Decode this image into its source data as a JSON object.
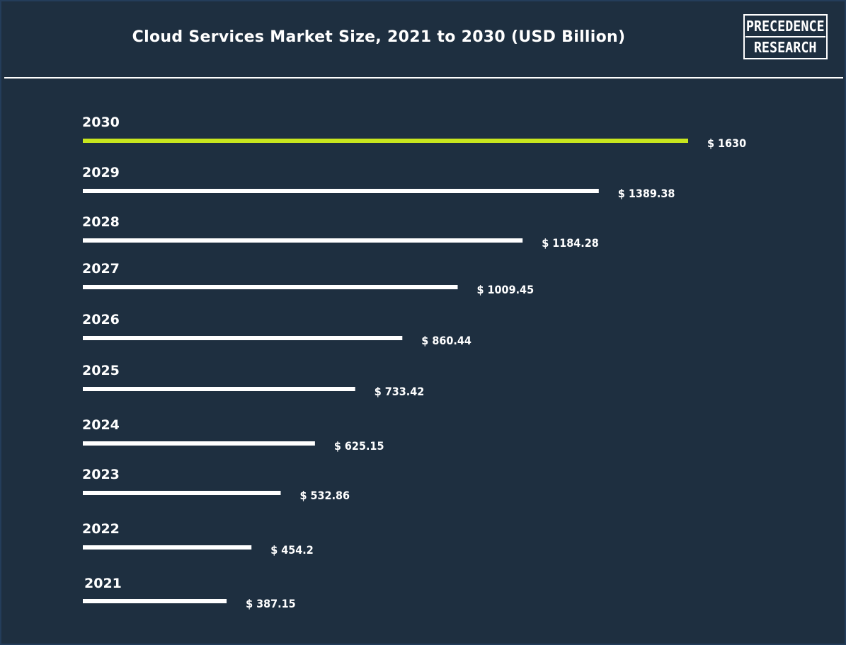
{
  "title": "Cloud Services Market Size, 2021 to 2030 (USD Billion)",
  "logo": {
    "line1": "PRECEDENCE",
    "line2": "RESEARCH"
  },
  "colors": {
    "background": "#1e2f40",
    "bar": "#ffffff",
    "highlight": "#c8e61e",
    "text": "#ffffff"
  },
  "chart_data": {
    "type": "bar",
    "orientation": "horizontal",
    "title": "Cloud Services Market Size, 2021 to 2030 (USD Billion)",
    "categories": [
      "2030",
      "2029",
      "2028",
      "2027",
      "2026",
      "2025",
      "2024",
      "2023",
      "2022",
      "2021"
    ],
    "values": [
      1630,
      1389.38,
      1184.28,
      1009.45,
      860.44,
      733.42,
      625.15,
      532.86,
      454.2,
      387.15
    ],
    "value_labels": [
      "$ 1630",
      "$ 1389.38",
      "$ 1184.28",
      "$ 1009.45",
      "$ 860.44",
      "$ 733.42",
      "$ 625.15",
      "$ 532.86",
      "$ 454.2",
      "$ 387.15"
    ],
    "highlight_category": "2030",
    "xlabel": "",
    "ylabel": "",
    "grid": false,
    "legend": "none"
  }
}
